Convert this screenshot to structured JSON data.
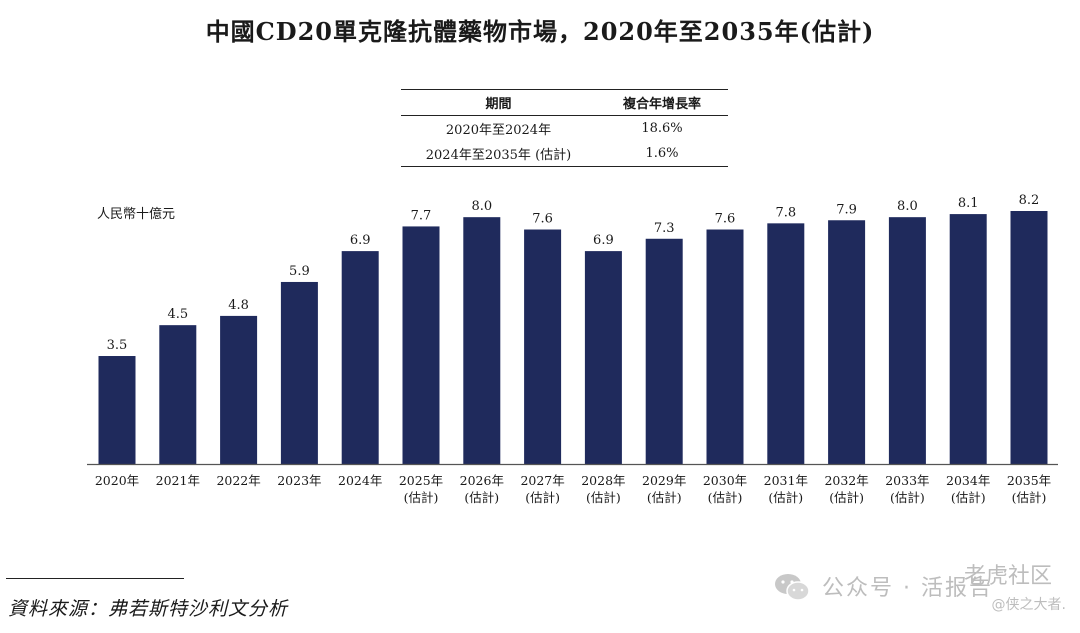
{
  "page": {
    "unit_label": "人民幣十億元",
    "source": "資料來源：弗若斯特沙利文分析"
  },
  "cagr_table": {
    "headers": [
      "期間",
      "複合年增長率"
    ],
    "rows": [
      {
        "period": "2020年至2024年",
        "cagr": "18.6%"
      },
      {
        "period": "2024年至2035年 (估計)",
        "cagr": "1.6%"
      }
    ]
  },
  "watermark": {
    "main": "公众号 · 活报告",
    "forum": "老虎社区",
    "user": "@侠之大者."
  },
  "colors": {
    "bar": "#1f2a5c",
    "axis": "#555555",
    "text": "#1a1a1a"
  },
  "chart_data": {
    "type": "bar",
    "title": "中國CD20單克隆抗體藥物市場，2020年至2035年(估計)",
    "ylabel": "人民幣十億元",
    "xlabel": "",
    "ylim": [
      0,
      8.2
    ],
    "categories": [
      [
        "2020年"
      ],
      [
        "2021年"
      ],
      [
        "2022年"
      ],
      [
        "2023年"
      ],
      [
        "2024年"
      ],
      [
        "2025年",
        "(估計)"
      ],
      [
        "2026年",
        "(估計)"
      ],
      [
        "2027年",
        "(估計)"
      ],
      [
        "2028年",
        "(估計)"
      ],
      [
        "2029年",
        "(估計)"
      ],
      [
        "2030年",
        "(估計)"
      ],
      [
        "2031年",
        "(估計)"
      ],
      [
        "2032年",
        "(估計)"
      ],
      [
        "2033年",
        "(估計)"
      ],
      [
        "2034年",
        "(估計)"
      ],
      [
        "2035年",
        "(估計)"
      ]
    ],
    "values": [
      3.5,
      4.5,
      4.8,
      5.9,
      6.9,
      7.7,
      8.0,
      7.6,
      6.9,
      7.3,
      7.6,
      7.8,
      7.9,
      8.0,
      8.1,
      8.2
    ],
    "value_labels": [
      "3.5",
      "4.5",
      "4.8",
      "5.9",
      "6.9",
      "7.7",
      "8.0",
      "7.6",
      "6.9",
      "7.3",
      "7.6",
      "7.8",
      "7.9",
      "8.0",
      "8.1",
      "8.2"
    ],
    "grid": false,
    "legend": "none"
  }
}
